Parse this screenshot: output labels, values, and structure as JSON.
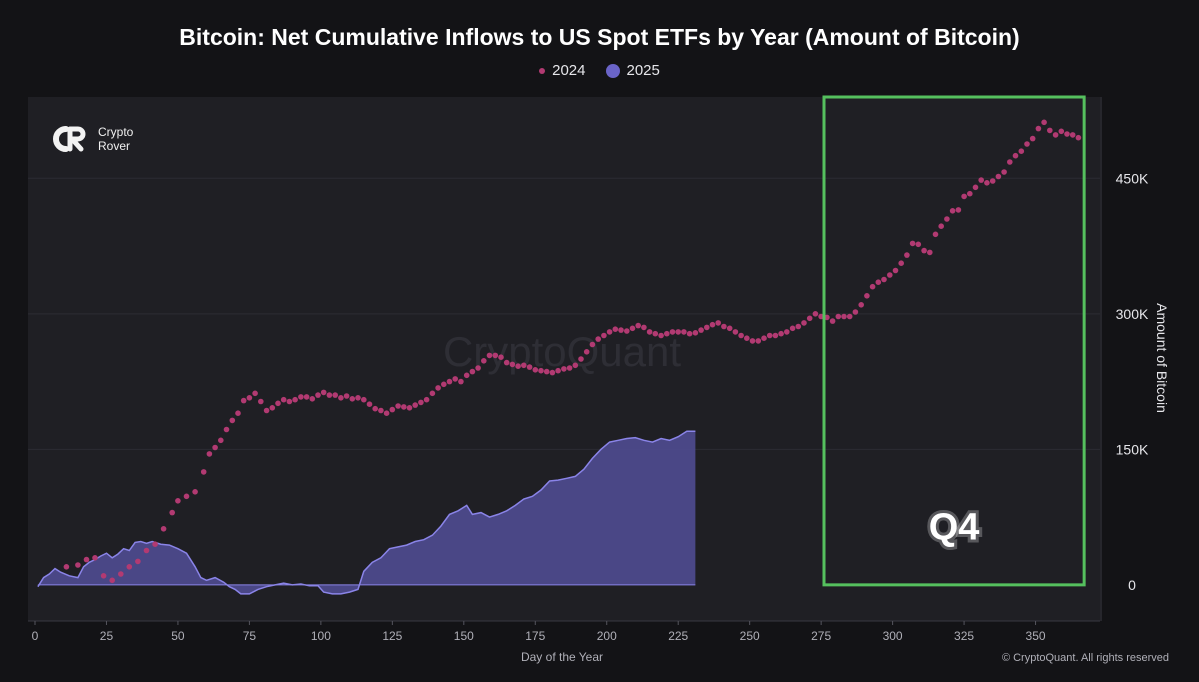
{
  "chart_data": {
    "type": "scatter",
    "title": "Bitcoin: Net Cumulative Inflows to US Spot ETFs by Year (Amount of Bitcoin)",
    "xlabel": "Day of the Year",
    "ylabel": "Amount of Bitcoin",
    "xlim": [
      0,
      368
    ],
    "ylim": [
      -40000,
      540000
    ],
    "x_ticks": [
      0,
      25,
      50,
      75,
      100,
      125,
      150,
      175,
      200,
      225,
      250,
      275,
      300,
      325,
      350
    ],
    "y_ticks": [
      {
        "value": 0,
        "label": "0"
      },
      {
        "value": 150000,
        "label": "150K"
      },
      {
        "value": 300000,
        "label": "300K"
      },
      {
        "value": 450000,
        "label": "450K"
      }
    ],
    "grid": true,
    "legend_position": "top-center",
    "series": [
      {
        "name": "2024",
        "kind": "dots",
        "color": "#b23a72",
        "points": [
          [
            11,
            20000
          ],
          [
            15,
            22000
          ],
          [
            18,
            28000
          ],
          [
            21,
            30000
          ],
          [
            24,
            10000
          ],
          [
            27,
            5000
          ],
          [
            30,
            12000
          ],
          [
            33,
            20000
          ],
          [
            36,
            26000
          ],
          [
            39,
            38000
          ],
          [
            42,
            45000
          ],
          [
            45,
            62000
          ],
          [
            48,
            80000
          ],
          [
            50,
            93000
          ],
          [
            53,
            98000
          ],
          [
            56,
            103000
          ],
          [
            59,
            125000
          ],
          [
            61,
            145000
          ],
          [
            63,
            152000
          ],
          [
            65,
            160000
          ],
          [
            67,
            172000
          ],
          [
            69,
            182000
          ],
          [
            71,
            190000
          ],
          [
            73,
            204000
          ],
          [
            75,
            207000
          ],
          [
            77,
            212000
          ],
          [
            79,
            203000
          ],
          [
            81,
            193000
          ],
          [
            83,
            196000
          ],
          [
            85,
            201000
          ],
          [
            87,
            205000
          ],
          [
            89,
            203000
          ],
          [
            91,
            205000
          ],
          [
            93,
            208000
          ],
          [
            95,
            208000
          ],
          [
            97,
            206000
          ],
          [
            99,
            210000
          ],
          [
            101,
            213000
          ],
          [
            103,
            210000
          ],
          [
            105,
            210000
          ],
          [
            107,
            207000
          ],
          [
            109,
            209000
          ],
          [
            111,
            206000
          ],
          [
            113,
            207000
          ],
          [
            115,
            205000
          ],
          [
            117,
            200000
          ],
          [
            119,
            195000
          ],
          [
            121,
            193000
          ],
          [
            123,
            190000
          ],
          [
            125,
            194000
          ],
          [
            127,
            198000
          ],
          [
            129,
            197000
          ],
          [
            131,
            196000
          ],
          [
            133,
            199000
          ],
          [
            135,
            202000
          ],
          [
            137,
            205000
          ],
          [
            139,
            212000
          ],
          [
            141,
            218000
          ],
          [
            143,
            222000
          ],
          [
            145,
            225000
          ],
          [
            147,
            228000
          ],
          [
            149,
            225000
          ],
          [
            151,
            232000
          ],
          [
            153,
            236000
          ],
          [
            155,
            240000
          ],
          [
            157,
            248000
          ],
          [
            159,
            254000
          ],
          [
            161,
            254000
          ],
          [
            163,
            252000
          ],
          [
            165,
            246000
          ],
          [
            167,
            244000
          ],
          [
            169,
            242000
          ],
          [
            171,
            243000
          ],
          [
            173,
            241000
          ],
          [
            175,
            238000
          ],
          [
            177,
            237000
          ],
          [
            179,
            236000
          ],
          [
            181,
            235000
          ],
          [
            183,
            237000
          ],
          [
            185,
            239000
          ],
          [
            187,
            240000
          ],
          [
            189,
            243000
          ],
          [
            191,
            250000
          ],
          [
            193,
            258000
          ],
          [
            195,
            266000
          ],
          [
            197,
            272000
          ],
          [
            199,
            276000
          ],
          [
            201,
            280000
          ],
          [
            203,
            283000
          ],
          [
            205,
            282000
          ],
          [
            207,
            281000
          ],
          [
            209,
            284000
          ],
          [
            211,
            287000
          ],
          [
            213,
            285000
          ],
          [
            215,
            280000
          ],
          [
            217,
            278000
          ],
          [
            219,
            276000
          ],
          [
            221,
            278000
          ],
          [
            223,
            280000
          ],
          [
            225,
            280000
          ],
          [
            227,
            280000
          ],
          [
            229,
            278000
          ],
          [
            231,
            279000
          ],
          [
            233,
            282000
          ],
          [
            235,
            285000
          ],
          [
            237,
            288000
          ],
          [
            239,
            290000
          ],
          [
            241,
            286000
          ],
          [
            243,
            284000
          ],
          [
            245,
            280000
          ],
          [
            247,
            276000
          ],
          [
            249,
            273000
          ],
          [
            251,
            270000
          ],
          [
            253,
            270000
          ],
          [
            255,
            273000
          ],
          [
            257,
            276000
          ],
          [
            259,
            276000
          ],
          [
            261,
            278000
          ],
          [
            263,
            280000
          ],
          [
            265,
            284000
          ],
          [
            267,
            286000
          ],
          [
            269,
            290000
          ],
          [
            271,
            295000
          ],
          [
            273,
            300000
          ],
          [
            275,
            297000
          ],
          [
            277,
            296000
          ],
          [
            279,
            292000
          ],
          [
            281,
            297000
          ],
          [
            283,
            297000
          ],
          [
            285,
            297000
          ],
          [
            287,
            302000
          ],
          [
            289,
            310000
          ],
          [
            291,
            320000
          ],
          [
            293,
            330000
          ],
          [
            295,
            335000
          ],
          [
            297,
            338000
          ],
          [
            299,
            343000
          ],
          [
            301,
            348000
          ],
          [
            303,
            356000
          ],
          [
            305,
            365000
          ],
          [
            307,
            378000
          ],
          [
            309,
            377000
          ],
          [
            311,
            370000
          ],
          [
            313,
            368000
          ],
          [
            315,
            388000
          ],
          [
            317,
            397000
          ],
          [
            319,
            405000
          ],
          [
            321,
            414000
          ],
          [
            323,
            415000
          ],
          [
            325,
            430000
          ],
          [
            327,
            433000
          ],
          [
            329,
            440000
          ],
          [
            331,
            448000
          ],
          [
            333,
            445000
          ],
          [
            335,
            447000
          ],
          [
            337,
            452000
          ],
          [
            339,
            457000
          ],
          [
            341,
            468000
          ],
          [
            343,
            475000
          ],
          [
            345,
            480000
          ],
          [
            347,
            488000
          ],
          [
            349,
            494000
          ],
          [
            351,
            505000
          ],
          [
            353,
            512000
          ],
          [
            355,
            503000
          ],
          [
            357,
            498000
          ],
          [
            359,
            502000
          ],
          [
            361,
            499000
          ],
          [
            363,
            498000
          ],
          [
            365,
            495000
          ]
        ]
      },
      {
        "name": "2025",
        "kind": "area",
        "color": "#6a64c8",
        "points": [
          [
            1,
            -2000
          ],
          [
            3,
            8000
          ],
          [
            5,
            12000
          ],
          [
            7,
            18000
          ],
          [
            9,
            14000
          ],
          [
            12,
            10000
          ],
          [
            15,
            8000
          ],
          [
            17,
            20000
          ],
          [
            19,
            25000
          ],
          [
            21,
            28000
          ],
          [
            23,
            32000
          ],
          [
            25,
            35000
          ],
          [
            27,
            30000
          ],
          [
            29,
            34000
          ],
          [
            31,
            40000
          ],
          [
            33,
            38000
          ],
          [
            35,
            47000
          ],
          [
            37,
            48000
          ],
          [
            39,
            46000
          ],
          [
            41,
            48000
          ],
          [
            44,
            45000
          ],
          [
            47,
            44000
          ],
          [
            50,
            40000
          ],
          [
            53,
            35000
          ],
          [
            56,
            20000
          ],
          [
            58,
            8000
          ],
          [
            60,
            5000
          ],
          [
            63,
            8000
          ],
          [
            66,
            3000
          ],
          [
            68,
            -2000
          ],
          [
            70,
            -5000
          ],
          [
            72,
            -10000
          ],
          [
            75,
            -10000
          ],
          [
            78,
            -5000
          ],
          [
            81,
            -2000
          ],
          [
            84,
            0
          ],
          [
            87,
            2000
          ],
          [
            90,
            0
          ],
          [
            93,
            1000
          ],
          [
            96,
            -1000
          ],
          [
            99,
            -1000
          ],
          [
            101,
            -8000
          ],
          [
            104,
            -10000
          ],
          [
            107,
            -10000
          ],
          [
            110,
            -8000
          ],
          [
            113,
            -5000
          ],
          [
            115,
            15000
          ],
          [
            118,
            25000
          ],
          [
            121,
            30000
          ],
          [
            124,
            40000
          ],
          [
            127,
            42000
          ],
          [
            130,
            44000
          ],
          [
            133,
            48000
          ],
          [
            136,
            50000
          ],
          [
            139,
            55000
          ],
          [
            142,
            65000
          ],
          [
            145,
            78000
          ],
          [
            148,
            82000
          ],
          [
            151,
            88000
          ],
          [
            153,
            78000
          ],
          [
            156,
            80000
          ],
          [
            159,
            75000
          ],
          [
            162,
            78000
          ],
          [
            165,
            82000
          ],
          [
            168,
            88000
          ],
          [
            171,
            95000
          ],
          [
            174,
            98000
          ],
          [
            177,
            105000
          ],
          [
            180,
            115000
          ],
          [
            183,
            116000
          ],
          [
            186,
            118000
          ],
          [
            189,
            120000
          ],
          [
            192,
            128000
          ],
          [
            195,
            140000
          ],
          [
            198,
            150000
          ],
          [
            201,
            158000
          ],
          [
            204,
            160000
          ],
          [
            207,
            162000
          ],
          [
            210,
            163000
          ],
          [
            213,
            160000
          ],
          [
            216,
            158000
          ],
          [
            219,
            162000
          ],
          [
            222,
            160000
          ],
          [
            225,
            164000
          ],
          [
            228,
            170000
          ],
          [
            231,
            170000
          ]
        ]
      }
    ],
    "annotations": [
      {
        "label": "Q4",
        "x_range": [
          276,
          367
        ],
        "y_range": [
          0,
          540000
        ],
        "color": "#55c05e"
      }
    ]
  },
  "logo": {
    "line1": "Crypto",
    "line2": "Rover"
  },
  "watermark": "CryptoQuant",
  "copyright": "© CryptoQuant. All rights reserved"
}
